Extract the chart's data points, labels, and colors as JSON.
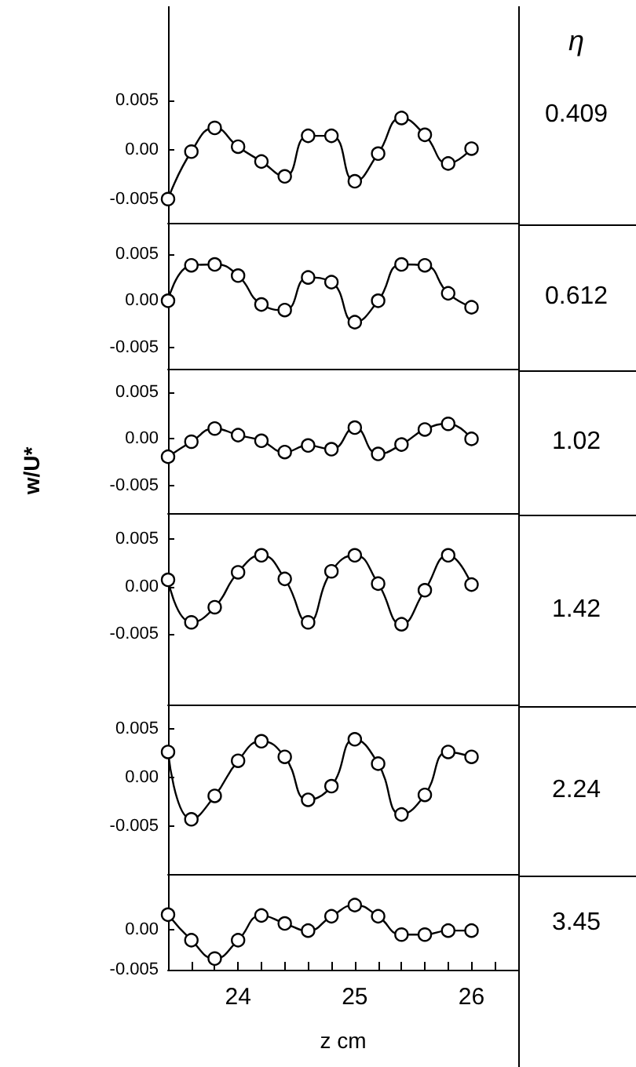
{
  "chart_data": [
    {
      "type": "line",
      "xlim": [
        23.4,
        26.4
      ],
      "ylim": [
        -0.0074,
        0.0145
      ],
      "yticks": [
        {
          "value": 0.005,
          "label": "0.005"
        },
        {
          "value": 0,
          "label": "0.00"
        },
        {
          "value": -0.005,
          "label": "-0.005"
        }
      ],
      "tick_labels": "y",
      "annotations": [
        "η"
      ],
      "marker": "circle",
      "legend": false,
      "grid": false,
      "series": [
        {
          "name": "0.409",
          "color": "#000000",
          "x": [
            23.4,
            23.6,
            23.8,
            24.0,
            24.2,
            24.4,
            24.6,
            24.8,
            25.0,
            25.2,
            25.4,
            25.6,
            25.8,
            26.0
          ],
          "values": [
            -0.005,
            -0.0002,
            0.0022,
            0.0003,
            -0.0012,
            -0.0027,
            0.0014,
            0.0014,
            -0.0032,
            -0.0004,
            0.0032,
            0.0015,
            -0.0014,
            0.0001
          ]
        }
      ]
    },
    {
      "type": "line",
      "xlim": [
        23.4,
        26.4
      ],
      "ylim": [
        -0.0073,
        0.0082
      ],
      "yticks": [
        {
          "value": 0.005,
          "label": "0.005"
        },
        {
          "value": 0,
          "label": "0.00"
        },
        {
          "value": -0.005,
          "label": "-0.005"
        }
      ],
      "tick_labels": "y",
      "marker": "circle",
      "legend": false,
      "grid": false,
      "series": [
        {
          "name": "0.612",
          "color": "#000000",
          "x": [
            23.4,
            23.6,
            23.8,
            24.0,
            24.2,
            24.4,
            24.6,
            24.8,
            25.0,
            25.2,
            25.4,
            25.6,
            25.8,
            26.0
          ],
          "values": [
            0,
            0.0038,
            0.0039,
            0.0027,
            -0.0004,
            -0.001,
            0.0025,
            0.002,
            -0.0023,
            0,
            0.0039,
            0.0038,
            0.0008,
            -0.0007
          ]
        }
      ]
    },
    {
      "type": "line",
      "xlim": [
        23.4,
        26.4
      ],
      "ylim": [
        -0.0079,
        0.0073
      ],
      "yticks": [
        {
          "value": 0.005,
          "label": "0.005"
        },
        {
          "value": 0,
          "label": "0.00"
        },
        {
          "value": -0.005,
          "label": "-0.005"
        }
      ],
      "tick_labels": "y",
      "ylabel": "w/U*",
      "marker": "circle",
      "legend": false,
      "grid": false,
      "series": [
        {
          "name": "1.02",
          "color": "#000000",
          "x": [
            23.4,
            23.6,
            23.8,
            24.0,
            24.2,
            24.4,
            24.6,
            24.8,
            25.0,
            25.2,
            25.4,
            25.6,
            25.8,
            26.0
          ],
          "values": [
            -0.0019,
            -0.0003,
            0.0011,
            0.0004,
            -0.0002,
            -0.0014,
            -0.0007,
            -0.0011,
            0.0012,
            -0.0016,
            -0.0006,
            0.001,
            0.0016,
            0
          ]
        }
      ]
    },
    {
      "type": "line",
      "xlim": [
        23.4,
        26.4
      ],
      "ylim": [
        -0.0125,
        0.0076
      ],
      "yticks": [
        {
          "value": 0.005,
          "label": "0.005"
        },
        {
          "value": 0,
          "label": "0.00"
        },
        {
          "value": -0.005,
          "label": "-0.005"
        }
      ],
      "tick_labels": "y",
      "marker": "circle",
      "legend": false,
      "grid": false,
      "series": [
        {
          "name": "1.42",
          "color": "#000000",
          "x": [
            23.4,
            23.6,
            23.8,
            24.0,
            24.2,
            24.4,
            24.6,
            24.8,
            25.0,
            25.2,
            25.4,
            25.6,
            25.8,
            26.0
          ],
          "values": [
            0.0007,
            -0.0038,
            -0.0022,
            0.0015,
            0.0033,
            0.0008,
            -0.0038,
            0.0016,
            0.0033,
            0.0003,
            -0.004,
            -0.0004,
            0.0033,
            0.0002
          ]
        }
      ]
    },
    {
      "type": "line",
      "xlim": [
        23.4,
        26.4
      ],
      "ylim": [
        -0.0099,
        0.0073
      ],
      "yticks": [
        {
          "value": 0.005,
          "label": "0.005"
        },
        {
          "value": 0,
          "label": "0.00"
        },
        {
          "value": -0.005,
          "label": "-0.005"
        }
      ],
      "tick_labels": "y",
      "marker": "circle",
      "legend": false,
      "grid": false,
      "series": [
        {
          "name": "2.24",
          "color": "#000000",
          "x": [
            23.4,
            23.6,
            23.8,
            24.0,
            24.2,
            24.4,
            24.6,
            24.8,
            25.0,
            25.2,
            25.4,
            25.6,
            25.8,
            26.0
          ],
          "values": [
            0.0026,
            -0.0043,
            -0.0019,
            0.0017,
            0.0037,
            0.0021,
            -0.0023,
            -0.0009,
            0.0039,
            0.0014,
            -0.0038,
            -0.0018,
            0.0026,
            0.0021
          ]
        }
      ]
    },
    {
      "type": "line",
      "xlim": [
        23.4,
        26.4
      ],
      "ylim": [
        -0.005,
        0.0068
      ],
      "yticks": [
        {
          "value": 0,
          "label": "0.00"
        },
        {
          "value": -0.005,
          "label": "-0.005"
        }
      ],
      "xticks": [
        {
          "value": 23.6,
          "label": null
        },
        {
          "value": 23.8,
          "label": null
        },
        24,
        {
          "value": 24.2,
          "label": null
        },
        {
          "value": 24.4,
          "label": null
        },
        {
          "value": 24.6,
          "label": null
        },
        {
          "value": 24.8,
          "label": null
        },
        25,
        {
          "value": 25.2,
          "label": null
        },
        {
          "value": 25.4,
          "label": null
        },
        {
          "value": 25.6,
          "label": null
        },
        {
          "value": 25.8,
          "label": null
        },
        26,
        {
          "value": 26.2,
          "label": null
        }
      ],
      "xlabel": "z cm",
      "marker": "circle",
      "legend": false,
      "grid": false,
      "series": [
        {
          "name": "3.45",
          "color": "#000000",
          "x": [
            23.4,
            23.6,
            23.8,
            24.0,
            24.2,
            24.4,
            24.6,
            24.8,
            25.0,
            25.2,
            25.4,
            25.6,
            25.8,
            26.0
          ],
          "values": [
            0.0019,
            -0.0013,
            -0.0036,
            -0.0013,
            0.0018,
            0.0008,
            -0.0001,
            0.0017,
            0.0031,
            0.0017,
            -0.0006,
            -0.0006,
            -0.0001,
            -0.0001
          ]
        }
      ]
    }
  ]
}
